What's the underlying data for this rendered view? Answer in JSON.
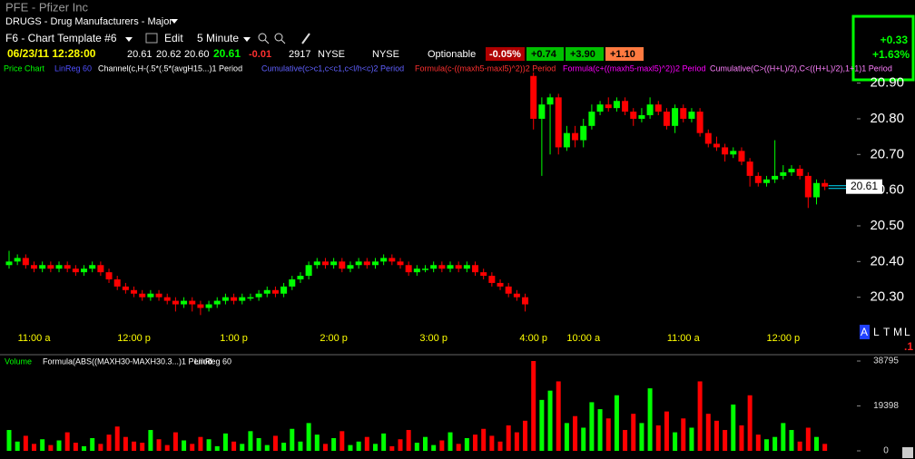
{
  "header": {
    "symbol": "PFE - Pfizer Inc",
    "industry": "DRUGS - Drug Manufacturers - Major",
    "template": "F6 - Chart Template #6",
    "edit": "Edit",
    "interval": "5 Minute",
    "timestamp": "06/23/11 12:28:00",
    "quotes": [
      "20.61",
      "20.62",
      "20.60"
    ],
    "last": "20.61",
    "change": "-0.01",
    "volume": "2917",
    "exchange": [
      "NYSE",
      "NYSE"
    ],
    "optionable": "Optionable",
    "badges": [
      "-0.05%",
      "+0.74",
      "+3.90",
      "+1.10"
    ],
    "day_change": "+0.33",
    "day_change_pct": "+1.63%",
    "mode_letters": [
      "A",
      "L",
      "T",
      "M",
      "L"
    ],
    "corner_flag": ".1"
  },
  "chart_data": [
    {
      "type": "candlestick",
      "title": "Price Chart",
      "indicators": [
        "LinReg 60",
        "Channel(c,H-(.5*(.5*(avgH15...)1 Period",
        "Cumulative(c>c1,c<c1,c<l/h<c)2 Period",
        "Formula(c-((maxh5-maxl5)^2))2 Period",
        "Formula(c+((maxh5-maxl5)^2))2 Period",
        "Cumulative(C>((H+L)/2),C<((H+L)/2),1+1)1 Period"
      ],
      "categories": [
        null,
        null,
        null,
        "11:00 a",
        null,
        null,
        null,
        null,
        null,
        null,
        null,
        null,
        null,
        null,
        null,
        "12:00 p",
        null,
        null,
        null,
        null,
        null,
        null,
        null,
        null,
        null,
        null,
        null,
        "1:00 p",
        null,
        null,
        null,
        null,
        null,
        null,
        null,
        null,
        null,
        null,
        null,
        "2:00 p",
        null,
        null,
        null,
        null,
        null,
        null,
        null,
        null,
        null,
        null,
        null,
        "3:00 p",
        null,
        null,
        null,
        null,
        null,
        null,
        null,
        null,
        null,
        null,
        null,
        "4:00 p",
        null,
        null,
        null,
        null,
        null,
        "10:00 a",
        null,
        null,
        null,
        null,
        null,
        null,
        null,
        null,
        null,
        null,
        null,
        "11:00 a",
        null,
        null,
        null,
        null,
        null,
        null,
        null,
        null,
        null,
        null,
        null,
        "12:00 p",
        null,
        null,
        null,
        null,
        null
      ],
      "open": [
        20.39,
        20.4,
        20.41,
        20.39,
        20.38,
        20.39,
        20.38,
        20.39,
        20.38,
        20.37,
        20.38,
        20.39,
        20.37,
        20.35,
        20.33,
        20.32,
        20.31,
        20.3,
        20.31,
        20.3,
        20.29,
        20.28,
        20.29,
        20.28,
        20.27,
        20.28,
        20.29,
        20.3,
        20.29,
        20.3,
        20.3,
        20.31,
        20.32,
        20.31,
        20.33,
        20.35,
        20.36,
        20.39,
        20.4,
        20.39,
        20.4,
        20.38,
        20.39,
        20.4,
        20.39,
        20.4,
        20.41,
        20.4,
        20.39,
        20.37,
        20.38,
        20.38,
        20.39,
        20.38,
        20.39,
        20.38,
        20.39,
        20.37,
        20.36,
        20.34,
        20.33,
        20.31,
        20.3,
        20.92,
        20.8,
        20.84,
        20.86,
        20.72,
        20.76,
        20.74,
        20.78,
        20.82,
        20.84,
        20.83,
        20.85,
        20.82,
        20.8,
        20.81,
        20.84,
        20.82,
        20.78,
        20.83,
        20.8,
        20.82,
        20.76,
        20.73,
        20.72,
        20.7,
        20.71,
        20.68,
        20.64,
        20.62,
        20.63,
        20.64,
        20.65,
        20.66,
        20.64,
        20.58,
        20.62
      ],
      "high": [
        20.43,
        20.42,
        20.42,
        20.4,
        20.4,
        20.4,
        20.4,
        20.4,
        20.39,
        20.39,
        20.4,
        20.4,
        20.38,
        20.36,
        20.34,
        20.33,
        20.32,
        20.32,
        20.32,
        20.31,
        20.3,
        20.3,
        20.3,
        20.29,
        20.29,
        20.3,
        20.31,
        20.31,
        20.31,
        20.31,
        20.32,
        20.33,
        20.33,
        20.34,
        20.36,
        20.37,
        20.4,
        20.41,
        20.41,
        20.41,
        20.41,
        20.4,
        20.41,
        20.41,
        20.41,
        20.42,
        20.42,
        20.41,
        20.4,
        20.39,
        20.39,
        20.4,
        20.4,
        20.4,
        20.4,
        20.4,
        20.4,
        20.38,
        20.37,
        20.35,
        20.34,
        20.32,
        20.31,
        20.93,
        20.86,
        20.87,
        20.87,
        20.78,
        20.78,
        20.8,
        20.84,
        20.85,
        20.86,
        20.86,
        20.86,
        20.83,
        20.83,
        20.86,
        20.85,
        20.83,
        20.84,
        20.84,
        20.83,
        20.83,
        20.77,
        20.75,
        20.73,
        20.72,
        20.72,
        20.69,
        20.65,
        20.64,
        20.74,
        20.67,
        20.67,
        20.67,
        20.65,
        20.63,
        20.63
      ],
      "low": [
        20.38,
        20.39,
        20.38,
        20.37,
        20.37,
        20.37,
        20.37,
        20.37,
        20.36,
        20.36,
        20.37,
        20.36,
        20.34,
        20.32,
        20.31,
        20.3,
        20.29,
        20.29,
        20.29,
        20.28,
        20.26,
        20.27,
        20.26,
        20.25,
        20.26,
        20.27,
        20.28,
        20.28,
        20.28,
        20.29,
        20.29,
        20.3,
        20.3,
        20.3,
        20.32,
        20.34,
        20.35,
        20.38,
        20.38,
        20.38,
        20.37,
        20.37,
        20.38,
        20.38,
        20.38,
        20.39,
        20.39,
        20.38,
        20.36,
        20.36,
        20.37,
        20.37,
        20.37,
        20.37,
        20.37,
        20.37,
        20.36,
        20.35,
        20.33,
        20.32,
        20.3,
        20.29,
        20.26,
        20.77,
        20.64,
        20.7,
        20.7,
        20.71,
        20.72,
        20.72,
        20.77,
        20.81,
        20.82,
        20.82,
        20.81,
        20.78,
        20.79,
        20.8,
        20.81,
        20.77,
        20.76,
        20.79,
        20.79,
        20.75,
        20.72,
        20.71,
        20.68,
        20.69,
        20.67,
        20.61,
        20.61,
        20.61,
        20.62,
        20.63,
        20.64,
        20.63,
        20.55,
        20.56,
        20.6
      ],
      "close": [
        20.4,
        20.41,
        20.39,
        20.38,
        20.39,
        20.38,
        20.39,
        20.38,
        20.37,
        20.38,
        20.39,
        20.37,
        20.35,
        20.33,
        20.32,
        20.31,
        20.3,
        20.31,
        20.3,
        20.29,
        20.28,
        20.29,
        20.28,
        20.27,
        20.28,
        20.29,
        20.3,
        20.29,
        20.3,
        20.3,
        20.31,
        20.32,
        20.31,
        20.33,
        20.35,
        20.36,
        20.39,
        20.4,
        20.39,
        20.4,
        20.38,
        20.39,
        20.4,
        20.39,
        20.4,
        20.41,
        20.4,
        20.39,
        20.37,
        20.38,
        20.38,
        20.39,
        20.38,
        20.39,
        20.38,
        20.39,
        20.37,
        20.36,
        20.34,
        20.33,
        20.31,
        20.3,
        20.28,
        20.8,
        20.84,
        20.86,
        20.72,
        20.76,
        20.74,
        20.78,
        20.82,
        20.84,
        20.83,
        20.85,
        20.82,
        20.8,
        20.81,
        20.84,
        20.82,
        20.78,
        20.83,
        20.8,
        20.82,
        20.76,
        20.73,
        20.72,
        20.7,
        20.71,
        20.68,
        20.64,
        20.62,
        20.63,
        20.64,
        20.65,
        20.66,
        20.64,
        20.58,
        20.62,
        20.61
      ],
      "up_color": "#00ff00",
      "down_color": "#ff0000",
      "ylim": [
        20.2,
        20.96
      ],
      "yticks": [
        {
          "value": 20.3,
          "label": "20.30"
        },
        {
          "value": 20.4,
          "label": "20.40"
        },
        {
          "value": 20.5,
          "label": "20.50"
        },
        {
          "value": 20.6,
          "label": "20.60"
        },
        {
          "value": 20.7,
          "label": "20.70"
        },
        {
          "value": 20.8,
          "label": "20.80"
        },
        {
          "value": 20.9,
          "label": "20.90"
        }
      ]
    },
    {
      "type": "bar",
      "title": "Volume",
      "subtitle": "Formula(ABS((MAXH30-MAXH30.3...)1 Period",
      "overlay": "LinReg 60",
      "values": [
        9000,
        4000,
        6500,
        3000,
        5000,
        2500,
        4500,
        8000,
        3500,
        2000,
        5500,
        3000,
        7000,
        10500,
        6000,
        4000,
        3500,
        9000,
        5000,
        2500,
        8000,
        4500,
        3000,
        6000,
        5000,
        2000,
        7500,
        4000,
        3000,
        8500,
        5500,
        2500,
        6500,
        3500,
        9500,
        4000,
        12000,
        7000,
        3000,
        5500,
        8500,
        2500,
        4000,
        6000,
        3000,
        7500,
        2000,
        5000,
        9000,
        3500,
        6000,
        2500,
        4500,
        8000,
        3000,
        5500,
        7000,
        9500,
        6500,
        4000,
        11000,
        8000,
        13000,
        38795,
        22000,
        26000,
        30000,
        12000,
        15000,
        10000,
        21000,
        18000,
        14000,
        24000,
        9000,
        16000,
        12000,
        27000,
        11000,
        17000,
        8000,
        14000,
        10000,
        30000,
        16000,
        13000,
        9000,
        20000,
        11000,
        24000,
        7000,
        5000,
        6000,
        12000,
        9000,
        4000,
        10000,
        6000,
        3000
      ],
      "ylim": [
        0,
        38795
      ],
      "yticks": [
        0,
        19398,
        38795
      ]
    }
  ]
}
